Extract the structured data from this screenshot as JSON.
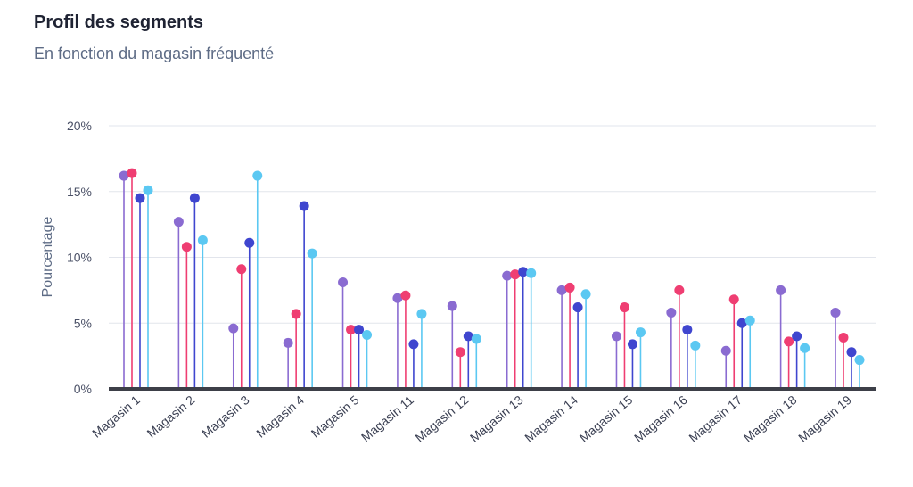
{
  "header": {
    "title": "Profil des segments",
    "subtitle": "En fonction du magasin fréquenté"
  },
  "chart_data": {
    "type": "lollipop",
    "title": "Profil des segments",
    "subtitle": "En fonction du magasin fréquenté",
    "xlabel": "",
    "ylabel": "Pourcentage",
    "ylim": [
      0,
      20
    ],
    "yticks": [
      0,
      5,
      10,
      15,
      20
    ],
    "ytick_labels": [
      "0%",
      "5%",
      "10%",
      "15%",
      "20%"
    ],
    "grid": true,
    "legend": "none",
    "categories": [
      "Magasin 1",
      "Magasin 2",
      "Magasin 3",
      "Magasin 4",
      "Magasin 5",
      "Magasin 11",
      "Magasin 12",
      "Magasin 13",
      "Magasin 14",
      "Magasin 15",
      "Magasin 16",
      "Magasin 17",
      "Magasin 18",
      "Magasin 19"
    ],
    "series": [
      {
        "color": "#8a6bd1",
        "values": [
          16.2,
          12.7,
          4.6,
          3.5,
          8.1,
          6.9,
          6.3,
          8.6,
          7.5,
          4.0,
          5.8,
          2.9,
          7.5,
          5.8
        ]
      },
      {
        "color": "#ef3e72",
        "values": [
          16.4,
          10.8,
          9.1,
          5.7,
          4.5,
          7.1,
          2.8,
          8.7,
          7.7,
          6.2,
          7.5,
          6.8,
          3.6,
          3.9
        ]
      },
      {
        "color": "#3f46cf",
        "values": [
          14.5,
          14.5,
          11.1,
          13.9,
          4.5,
          3.4,
          4.0,
          8.9,
          6.2,
          3.4,
          4.5,
          5.0,
          4.0,
          2.8
        ]
      },
      {
        "color": "#5bc8f2",
        "values": [
          15.1,
          11.3,
          16.2,
          10.3,
          4.1,
          5.7,
          3.8,
          8.8,
          7.2,
          4.3,
          3.3,
          5.2,
          3.1,
          2.2
        ]
      }
    ]
  }
}
